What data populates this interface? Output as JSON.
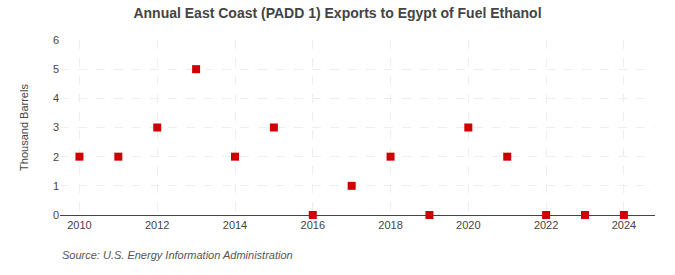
{
  "chart_data": {
    "type": "scatter",
    "title": "Annual East Coast (PADD 1) Exports to Egypt of Fuel Ethanol",
    "ylabel": "Thousand Barrels",
    "annotations": [
      "Source: U.S. Energy Information Administration"
    ],
    "x": [
      2010,
      2011,
      2012,
      2013,
      2014,
      2015,
      2016,
      2017,
      2018,
      2019,
      2020,
      2021,
      2022,
      2023,
      2024
    ],
    "values": [
      2,
      2,
      3,
      5,
      2,
      3,
      0,
      1,
      2,
      0,
      3,
      2,
      0,
      0,
      0
    ],
    "color": "#CC0000",
    "marker": "square",
    "xlim": [
      2009.5,
      2024.8
    ],
    "xticks": [
      2010,
      2012,
      2014,
      2016,
      2018,
      2020,
      2022,
      2024
    ],
    "ylim": [
      0,
      6
    ],
    "yticks": [
      0,
      1,
      2,
      3,
      4,
      5,
      6
    ],
    "grid": true
  }
}
